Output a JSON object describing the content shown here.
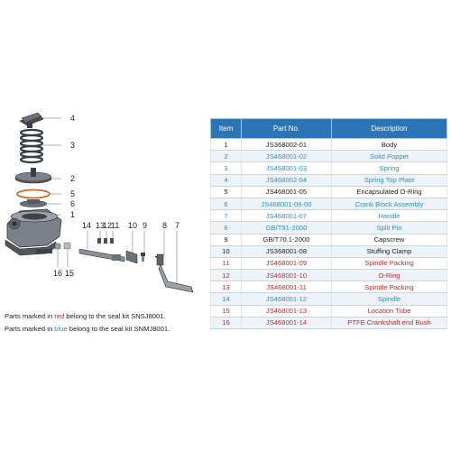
{
  "diagram": {
    "callouts": [
      "4",
      "3",
      "2",
      "5",
      "6",
      "1",
      "14",
      "13",
      "12",
      "11",
      "10",
      "9",
      "8",
      "7",
      "16",
      "15"
    ]
  },
  "notes": {
    "red": {
      "prefix": "Parts marked in ",
      "keyword": "red",
      "suffix": "  belong to the seal kit SNSJ8001."
    },
    "blue": {
      "prefix": "Parts marked in ",
      "keyword": "blue",
      "suffix": "  belong to the seal kit SNMJ8001."
    }
  },
  "colors": {
    "header": "#2a75b6",
    "red": "#c0282d",
    "blue": "#2a8fd0",
    "black": "#222222"
  },
  "table": {
    "headers": [
      "Item",
      "Part No.",
      "Description"
    ],
    "rows": [
      {
        "item": "1",
        "part_no": "JS368002-01",
        "description": "Body",
        "color": "black"
      },
      {
        "item": "2",
        "part_no": "JS468001-02",
        "description": "Solid Poppet",
        "color": "blue"
      },
      {
        "item": "3",
        "part_no": "JS468001-03",
        "description": "Spring",
        "color": "blue"
      },
      {
        "item": "4",
        "part_no": "JS468002-04",
        "description": "Spring Top Plate",
        "color": "blue"
      },
      {
        "item": "5",
        "part_no": "JS468001-05",
        "description": "Encapsulated O-Ring",
        "color": "black"
      },
      {
        "item": "6",
        "part_no": "JS468001-06-00",
        "description": "Crank Block Assembly",
        "color": "blue"
      },
      {
        "item": "7",
        "part_no": "JS468001-07",
        "description": "Handle",
        "color": "blue"
      },
      {
        "item": "8",
        "part_no": "GB/T91-2000",
        "description": "Split Pin",
        "color": "blue"
      },
      {
        "item": "9",
        "part_no": "GB/T70.1-2000",
        "description": "Capscrew",
        "color": "black"
      },
      {
        "item": "10",
        "part_no": "JS368001-08",
        "description": "Stuffing Clamp",
        "color": "black"
      },
      {
        "item": "11",
        "part_no": "JS468001-09",
        "description": "Spindle Packing",
        "color": "red"
      },
      {
        "item": "12",
        "part_no": "JS468001-10",
        "description": "O-Ring",
        "color": "red"
      },
      {
        "item": "13",
        "part_no": "JS468001-11",
        "description": "Spindle Packing",
        "color": "red"
      },
      {
        "item": "14",
        "part_no": "JS468001-12",
        "description": "Spindle",
        "color": "blue"
      },
      {
        "item": "15",
        "part_no": "JS468001-13",
        "description": "Location Tube",
        "color": "red"
      },
      {
        "item": "16",
        "part_no": "JS468001-14",
        "description": "PTFE Crankshaft end Bush",
        "color": "red"
      }
    ]
  }
}
